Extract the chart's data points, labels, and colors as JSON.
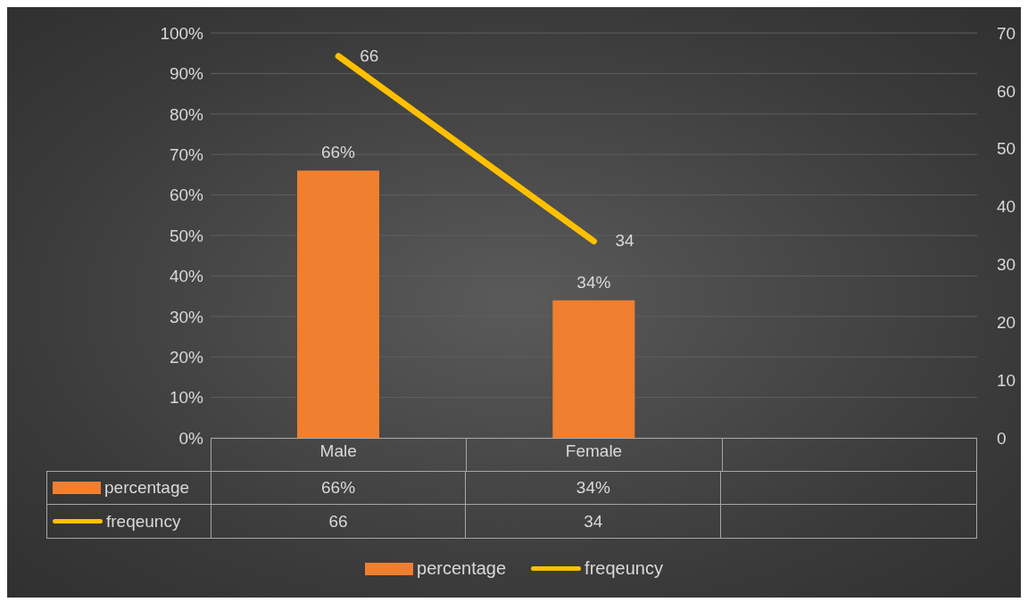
{
  "chart_data": {
    "type": "bar",
    "categories": [
      "Male",
      "Female",
      null
    ],
    "series": [
      {
        "name": "percentage",
        "color": "#f07f2f",
        "values": [
          66,
          34,
          null
        ],
        "value_labels": [
          "66%",
          "34%",
          null
        ]
      },
      {
        "name": "freqeuncy",
        "type": "line",
        "axis": "y2",
        "color": "#ffc000",
        "values": [
          66,
          34,
          null
        ],
        "value_labels": [
          "66",
          "34",
          null
        ]
      }
    ],
    "ylim": [
      0,
      100
    ],
    "yticks": [
      {
        "value": 0,
        "label": "0%"
      },
      {
        "value": 10,
        "label": "10%"
      },
      {
        "value": 20,
        "label": "20%"
      },
      {
        "value": 30,
        "label": "30%"
      },
      {
        "value": 40,
        "label": "40%"
      },
      {
        "value": 50,
        "label": "50%"
      },
      {
        "value": 60,
        "label": "60%"
      },
      {
        "value": 70,
        "label": "70%"
      },
      {
        "value": 80,
        "label": "80%"
      },
      {
        "value": 90,
        "label": "90%"
      },
      {
        "value": 100,
        "label": "100%"
      }
    ],
    "y2lim": [
      0,
      70
    ],
    "y2ticks": [
      0,
      10,
      20,
      30,
      40,
      50,
      60,
      70
    ],
    "grid": "y",
    "legend": "bottom"
  }
}
